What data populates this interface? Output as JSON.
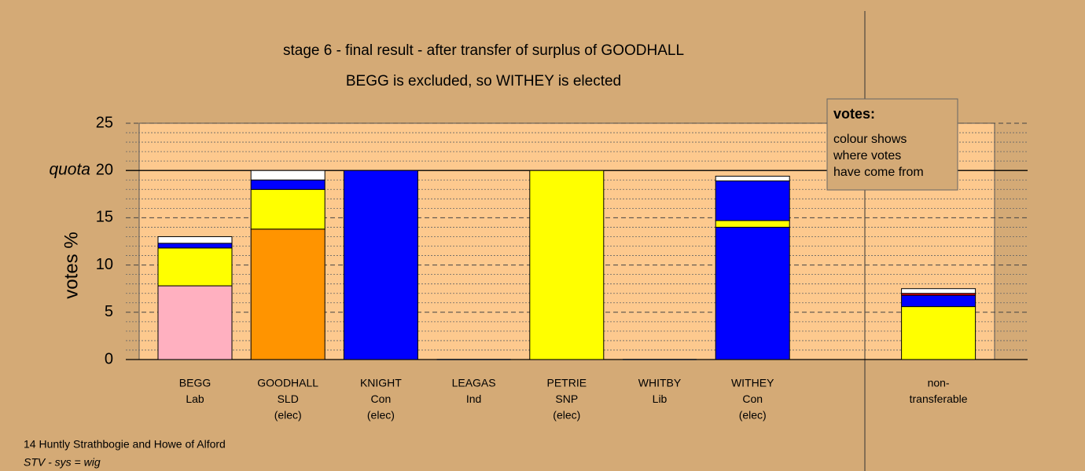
{
  "chart_data": {
    "type": "stacked_bar",
    "title": "stage 6 - final result - after transfer of surplus of GOODHALL",
    "subtitle": "BEGG is excluded, so WITHEY is elected",
    "ylabel": "votes %",
    "categories": [
      [
        "BEGG",
        "Lab"
      ],
      [
        "GOODHALL",
        "SLD",
        "(elec)"
      ],
      [
        "KNIGHT",
        "Con",
        "(elec)"
      ],
      [
        "LEAGAS",
        "Ind"
      ],
      [
        "PETRIE",
        "SNP",
        "(elec)"
      ],
      [
        "WHITBY",
        "Lib"
      ],
      [
        "WITHEY",
        "Con",
        "(elec)"
      ],
      null,
      [
        "non-",
        "transferable"
      ]
    ],
    "stacks": [
      [
        {
          "color": "#ffb0c0",
          "value": 7.8
        },
        {
          "color": "#ffff00",
          "value": 4.0
        },
        {
          "color": "#0000ff",
          "value": 0.5
        },
        {
          "color": "#ffffff",
          "value": 0.7
        }
      ],
      [
        {
          "color": "#ff9400",
          "value": 13.8
        },
        {
          "color": "#ffff00",
          "value": 4.2
        },
        {
          "color": "#0000ff",
          "value": 1.0
        },
        {
          "color": "#ffffff",
          "value": 1.0
        }
      ],
      [
        {
          "color": "#0000ff",
          "value": 20.0
        }
      ],
      [],
      [
        {
          "color": "#ffff00",
          "value": 20.0
        }
      ],
      [],
      [
        {
          "color": "#0000ff",
          "value": 14.0
        },
        {
          "color": "#ffff00",
          "value": 0.7
        },
        {
          "color": "#0000ff",
          "value": 4.2
        },
        {
          "color": "#ffffff",
          "value": 0.5
        }
      ],
      null,
      [
        {
          "color": "#ffff00",
          "value": 5.6
        },
        {
          "color": "#0000ff",
          "value": 1.2
        },
        {
          "color": "#ff0000",
          "value": 0.2
        },
        {
          "color": "#ffffff",
          "value": 0.5
        }
      ]
    ],
    "ylim": [
      0,
      25
    ],
    "yticks": [
      0,
      5,
      10,
      15,
      20,
      25
    ],
    "minor_yticks": [
      1,
      2,
      3,
      4,
      6,
      7,
      8,
      9,
      11,
      12,
      13,
      14,
      16,
      17,
      18,
      19,
      21,
      22,
      23,
      24
    ],
    "quota": 20,
    "quota_label": "quota",
    "legend": {
      "title": "votes:",
      "lines": [
        "colour shows",
        "where votes",
        "have come from"
      ]
    },
    "footer": [
      "14 Huntly Strathbogie and Howe of Alford",
      "STV - sys = wig"
    ]
  }
}
